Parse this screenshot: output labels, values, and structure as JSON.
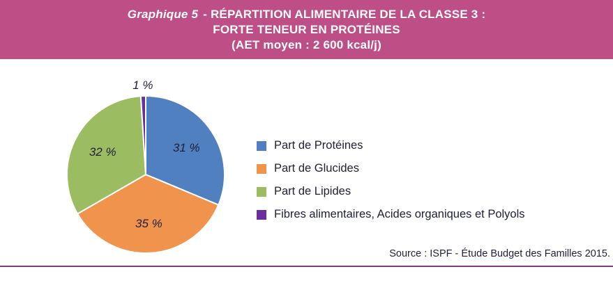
{
  "header": {
    "bg_color": "#BD4E86",
    "title_prefix": "Graphique 5",
    "title_line1_rest": "- RÉPARTITION ALIMENTAIRE DE LA CLASSE 3 :",
    "title_line2": "FORTE TENEUR EN PROTÉINES",
    "title_line3": "(AET moyen : 2 600 kcal/j)"
  },
  "chart_data": {
    "type": "pie",
    "title": "Graphique 5 - RÉPARTITION ALIMENTAIRE DE LA CLASSE 3 : FORTE TENEUR EN PROTÉINES (AET moyen : 2 600 kcal/j)",
    "direction": "clockwise",
    "start_angle_deg": 0,
    "legend_position": "right",
    "slices": [
      {
        "label": "Part de Protéines",
        "value": 31,
        "display": "31 %",
        "color": "#5080BF"
      },
      {
        "label": "Part de Glucides",
        "value": 35,
        "display": "35 %",
        "color": "#F0944D"
      },
      {
        "label": "Part de Lipides",
        "value": 32,
        "display": "32 %",
        "color": "#9CBC62"
      },
      {
        "label": "Fibres alimentaires, Acides organiques et Polyols",
        "value": 1,
        "display": "1 %",
        "color": "#6B2E9A"
      }
    ]
  },
  "source": {
    "text": "Source : ISPF - Étude Budget des Familles 2015.",
    "rule_color": "#82387E"
  }
}
